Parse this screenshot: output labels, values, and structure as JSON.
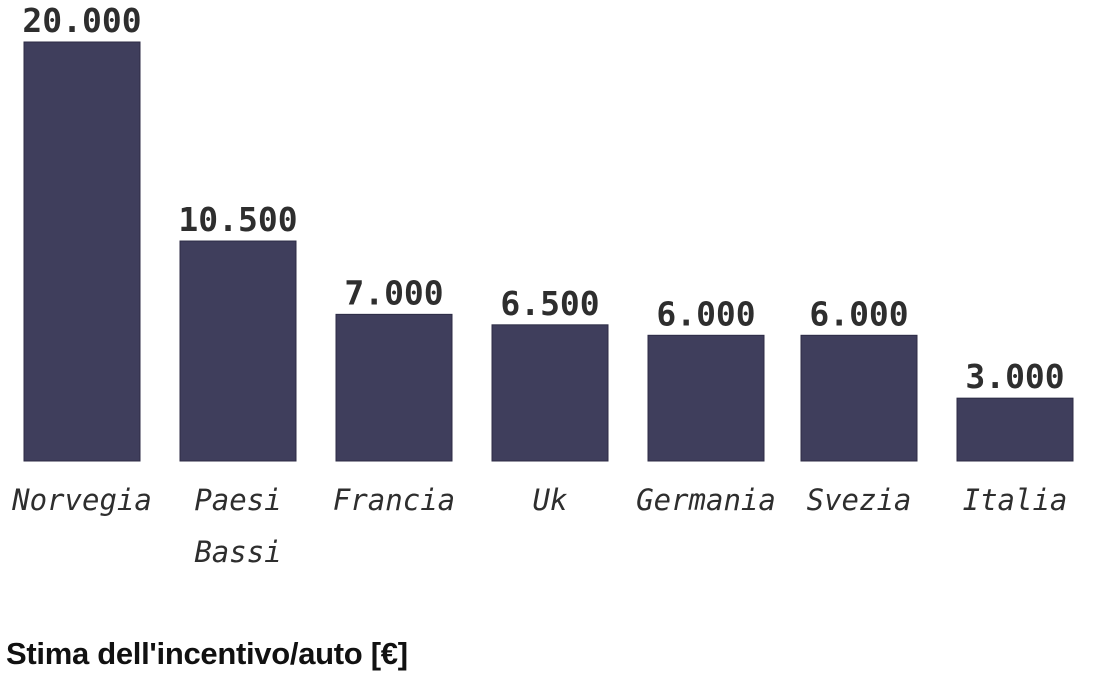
{
  "chart_data": {
    "type": "bar",
    "categories": [
      "Norvegia",
      "Paesi Bassi",
      "Francia",
      "Uk",
      "Germania",
      "Svezia",
      "Italia"
    ],
    "values": [
      20000,
      10500,
      7000,
      6500,
      6000,
      6000,
      3000
    ],
    "value_labels": [
      "20.000",
      "10.500",
      "7.000",
      "6.500",
      "6.000",
      "6.000",
      "3.000"
    ],
    "bar_color": "#3f3e5c",
    "grid": false,
    "legend": "none"
  },
  "caption": "Stima dell'incentivo/auto [€]"
}
